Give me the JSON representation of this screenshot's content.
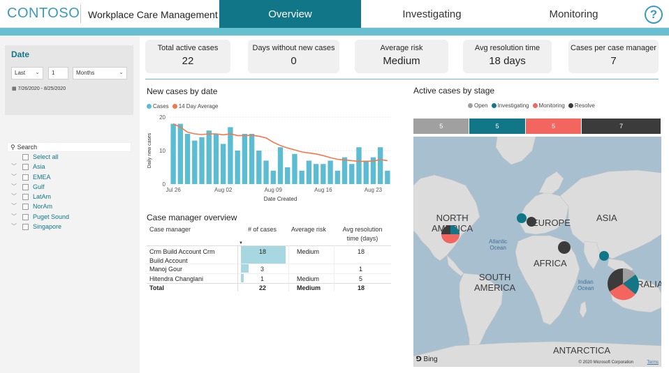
{
  "header": {
    "logo": "CONTOSO",
    "app_title": "Workplace Care Management",
    "tabs": [
      {
        "label": "Overview",
        "active": true
      },
      {
        "label": "Investigating",
        "active": false
      },
      {
        "label": "Monitoring",
        "active": false
      }
    ],
    "help_label": "?"
  },
  "colors": {
    "accent": "#117788",
    "accent_light": "#67c0d0",
    "bar": "#5cbdd2",
    "avg_line": "#f2784b",
    "open": "#a0a0a0",
    "investigating": "#117788",
    "monitoring": "#f2665f",
    "resolve": "#3b3b3b"
  },
  "date_filter": {
    "title": "Date",
    "relative_value": "Last",
    "count": "1",
    "unit": "Months",
    "range": "7/26/2020 - 8/25/2020",
    "calendar_icon": "calendar-icon"
  },
  "region_slicer": {
    "search_placeholder": "Search",
    "items": [
      "Select all",
      "Asia",
      "EMEA",
      "Gulf",
      "LatAm",
      "NorAm",
      "Puget Sound",
      "Singapore"
    ]
  },
  "kpis": [
    {
      "label": "Total active cases",
      "value": "22"
    },
    {
      "label": "Days without new cases",
      "value": "0"
    },
    {
      "label": "Average risk",
      "value": "Medium"
    },
    {
      "label": "Avg resolution time",
      "value": "18 days"
    },
    {
      "label": "Cases per case manager",
      "value": "7"
    }
  ],
  "new_cases_chart": {
    "title": "New cases by date",
    "legend": [
      "Cases",
      "14 Day Average"
    ],
    "ylabel": "Daily new cases",
    "xlabel": "Date Created",
    "y_ticks": [
      "0",
      "10",
      "20"
    ],
    "x_ticks": [
      "Jul 26",
      "Aug 02",
      "Aug 09",
      "Aug 16",
      "Aug 23"
    ]
  },
  "chart_data": [
    {
      "type": "bar",
      "title": "New cases by date",
      "xlabel": "Date Created",
      "ylabel": "Daily new cases",
      "ylim": [
        0,
        20
      ],
      "categories": [
        "Jul 26",
        "Jul 27",
        "Jul 28",
        "Jul 29",
        "Jul 30",
        "Jul 31",
        "Aug 01",
        "Aug 02",
        "Aug 03",
        "Aug 04",
        "Aug 05",
        "Aug 06",
        "Aug 07",
        "Aug 08",
        "Aug 09",
        "Aug 10",
        "Aug 11",
        "Aug 12",
        "Aug 13",
        "Aug 14",
        "Aug 15",
        "Aug 16",
        "Aug 17",
        "Aug 18",
        "Aug 19",
        "Aug 20",
        "Aug 21",
        "Aug 22",
        "Aug 23",
        "Aug 24",
        "Aug 25"
      ],
      "series": [
        {
          "name": "Cases",
          "values": [
            18,
            18,
            15,
            13,
            14,
            16,
            15,
            12,
            17,
            10,
            15,
            15,
            10,
            7,
            4,
            11,
            5,
            9,
            4,
            7,
            6,
            6,
            7,
            4,
            8,
            6,
            11,
            7,
            8,
            11,
            4
          ]
        },
        {
          "name": "14 Day Average",
          "values": [
            18,
            17,
            15.5,
            15,
            14.8,
            15,
            15,
            14.7,
            15,
            14.5,
            14.5,
            14.6,
            14.3,
            13.8,
            12.5,
            11.5,
            10.8,
            10.2,
            9.6,
            9.3,
            9,
            8.5,
            7.9,
            7.4,
            7.2,
            7,
            6.8,
            6.8,
            6.9,
            7.3,
            7
          ]
        }
      ],
      "legend": "top-left",
      "grid": true
    },
    {
      "type": "bar",
      "title": "Active cases by stage",
      "categories": [
        "Open",
        "Investigating",
        "Monitoring",
        "Resolve"
      ],
      "values": [
        5,
        5,
        5,
        7
      ],
      "stacked": true
    }
  ],
  "case_table": {
    "title": "Case manager overview",
    "columns": [
      "Case manager",
      "# of cases",
      "Average risk",
      "Avg resolution time (days)"
    ],
    "col4_line1": "Avg resolution",
    "col4_line2": "time (days)",
    "rows": [
      {
        "manager_line1": "Crm Build Account Crm",
        "manager_line2": "Build Account",
        "cases": "18",
        "cases_value": 18,
        "risk": "Medium",
        "resolution": "18"
      },
      {
        "manager_line1": "Manoj Gour",
        "manager_line2": "",
        "cases": "3",
        "cases_value": 3,
        "risk": "",
        "resolution": "1"
      },
      {
        "manager_line1": "Hitendra Changlani",
        "manager_line2": "",
        "cases": "1",
        "cases_value": 1,
        "risk": "Medium",
        "resolution": "5"
      }
    ],
    "total": {
      "label": "Total",
      "cases": "22",
      "risk": "Medium",
      "resolution": "18"
    }
  },
  "stage_chart": {
    "title": "Active cases by stage",
    "legend": [
      "Open",
      "Investigating",
      "Monitoring",
      "Resolve"
    ],
    "values": [
      "5",
      "5",
      "5",
      "7"
    ]
  },
  "map": {
    "continents": {
      "north_america_1": "NORTH",
      "north_america_2": "AMERICA",
      "europe": "EUROPE",
      "asia": "ASIA",
      "africa": "AFRICA",
      "south_america_1": "SOUTH",
      "south_america_2": "AMERICA",
      "australia": "RALIA",
      "antarctica": "ANTARCTICA"
    },
    "oceans": {
      "atlantic_1": "Atlantic",
      "atlantic_2": "Ocean",
      "indian_1": "Indian",
      "indian_2": "Ocean"
    },
    "bing": "Bing",
    "copyright": "© 2020 Microsoft Corporation",
    "terms": "Terms"
  }
}
